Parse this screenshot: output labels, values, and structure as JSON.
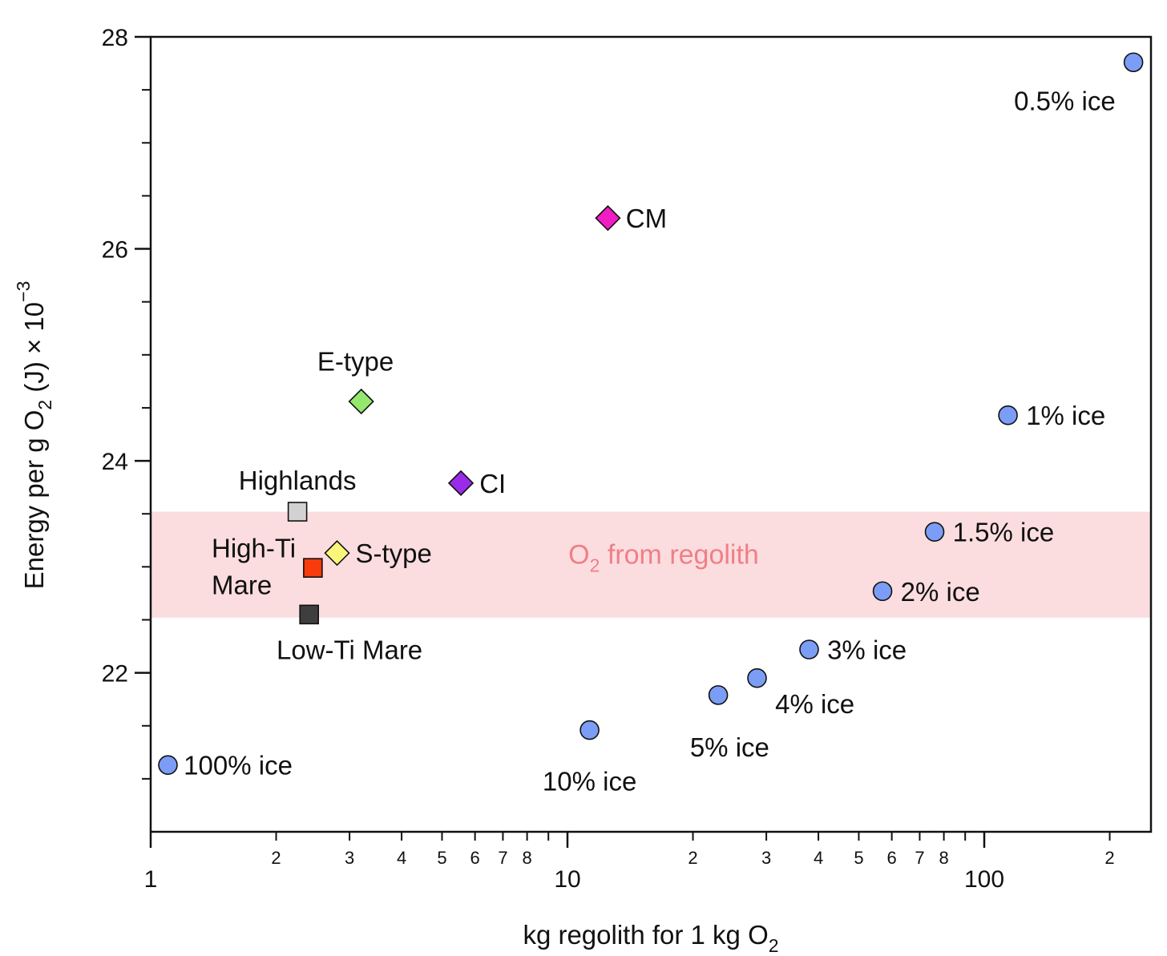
{
  "chart_data": {
    "type": "scatter",
    "xscale": "log",
    "xlim": [
      1,
      240
    ],
    "ylim": [
      20.5,
      28
    ],
    "grid": false,
    "legend": "none",
    "xlabel": {
      "main": "kg regolith for 1 kg O",
      "sub": "2"
    },
    "ylabel": {
      "a": "Energy per g O",
      "sub": "2",
      "b": " (J) × 10",
      "sup": "−3"
    },
    "x_major_ticks": [
      {
        "value": 1,
        "label": "1"
      },
      {
        "value": 10,
        "label": "10"
      },
      {
        "value": 100,
        "label": "100"
      }
    ],
    "x_minor_ticks": [
      {
        "value": 2,
        "label": "2"
      },
      {
        "value": 3,
        "label": "3"
      },
      {
        "value": 4,
        "label": "4"
      },
      {
        "value": 5,
        "label": "5"
      },
      {
        "value": 6,
        "label": "6"
      },
      {
        "value": 7,
        "label": "7"
      },
      {
        "value": 8,
        "label": "8"
      },
      {
        "value": 9,
        "label": ""
      },
      {
        "value": 20,
        "label": "2"
      },
      {
        "value": 30,
        "label": "3"
      },
      {
        "value": 40,
        "label": "4"
      },
      {
        "value": 50,
        "label": "5"
      },
      {
        "value": 60,
        "label": "6"
      },
      {
        "value": 70,
        "label": "7"
      },
      {
        "value": 80,
        "label": "8"
      },
      {
        "value": 90,
        "label": ""
      },
      {
        "value": 200,
        "label": "2"
      }
    ],
    "y_major_ticks": [
      {
        "value": 22,
        "label": "22"
      },
      {
        "value": 24,
        "label": "24"
      },
      {
        "value": 26,
        "label": "26"
      },
      {
        "value": 28,
        "label": "28"
      }
    ],
    "band": {
      "y_range": [
        22.52,
        23.52
      ],
      "color": "#fbdde0",
      "label": "O",
      "label_sub": "2",
      "label_rest": " from regolith",
      "label_x": 10,
      "label_y": 23.03
    },
    "colors": {
      "ice": "#7b9df5",
      "E-type": "#95e86e",
      "CI": "#9b2bea",
      "CM": "#f01cc4",
      "S-type": "#f8f77a",
      "Highlands": "#d2d2d2",
      "High-Ti Mare": "#f83a0c",
      "Low-Ti Mare": "#3e3e3e"
    },
    "series": [
      {
        "marker": "circle",
        "points": [
          {
            "x": 1.1,
            "y": 21.13,
            "label": "100% ice",
            "lx": 1.2,
            "ly": 21.13,
            "anchor": "start"
          },
          {
            "x": 11.3,
            "y": 21.46,
            "label": "10% ice",
            "lx": 11.3,
            "ly": 20.98,
            "anchor": "middle"
          },
          {
            "x": 23,
            "y": 21.79,
            "label": "5% ice",
            "lx": 24.5,
            "ly": 21.3,
            "anchor": "middle"
          },
          {
            "x": 28.5,
            "y": 21.95,
            "label": "4% ice",
            "lx": 31.5,
            "ly": 21.71,
            "anchor": "start"
          },
          {
            "x": 38,
            "y": 22.22,
            "label": "3% ice",
            "lx": 42,
            "ly": 22.22,
            "anchor": "start"
          },
          {
            "x": 57,
            "y": 22.77,
            "label": "2% ice",
            "lx": 63,
            "ly": 22.77,
            "anchor": "start"
          },
          {
            "x": 76,
            "y": 23.33,
            "label": "1.5% ice",
            "lx": 84,
            "ly": 23.33,
            "anchor": "start"
          },
          {
            "x": 114,
            "y": 24.43,
            "label": "1% ice",
            "lx": 126,
            "ly": 24.43,
            "anchor": "start"
          },
          {
            "x": 228,
            "y": 27.76,
            "label": "0.5% ice",
            "lx": 156,
            "ly": 27.4,
            "anchor": "middle"
          }
        ]
      },
      {
        "marker": "diamond",
        "points": [
          {
            "x": 3.2,
            "y": 24.56,
            "label": "E-type",
            "lx": 3.1,
            "ly": 24.94,
            "anchor": "middle",
            "color_key": "E-type"
          },
          {
            "x": 5.55,
            "y": 23.79,
            "label": "CI",
            "lx": 6.15,
            "ly": 23.79,
            "anchor": "start",
            "color_key": "CI"
          },
          {
            "x": 12.5,
            "y": 26.29,
            "label": "CM",
            "lx": 13.8,
            "ly": 26.29,
            "anchor": "start",
            "color_key": "CM"
          },
          {
            "x": 2.8,
            "y": 23.13,
            "label": "S-type",
            "lx": 3.1,
            "ly": 23.13,
            "anchor": "start",
            "color_key": "S-type"
          }
        ]
      },
      {
        "marker": "square",
        "points": [
          {
            "x": 2.25,
            "y": 23.52,
            "label": "Highlands",
            "lx": 2.25,
            "ly": 23.82,
            "anchor": "middle",
            "color_key": "Highlands"
          },
          {
            "x": 2.45,
            "y": 22.99,
            "label": "High-Ti",
            "label2": "Mare",
            "lx": 1.4,
            "ly": 23.18,
            "anchor": "start",
            "color_key": "High-Ti Mare"
          },
          {
            "x": 2.4,
            "y": 22.55,
            "label": "Low-Ti Mare",
            "lx": 3.0,
            "ly": 22.22,
            "anchor": "middle",
            "color_key": "Low-Ti Mare"
          }
        ]
      }
    ]
  }
}
